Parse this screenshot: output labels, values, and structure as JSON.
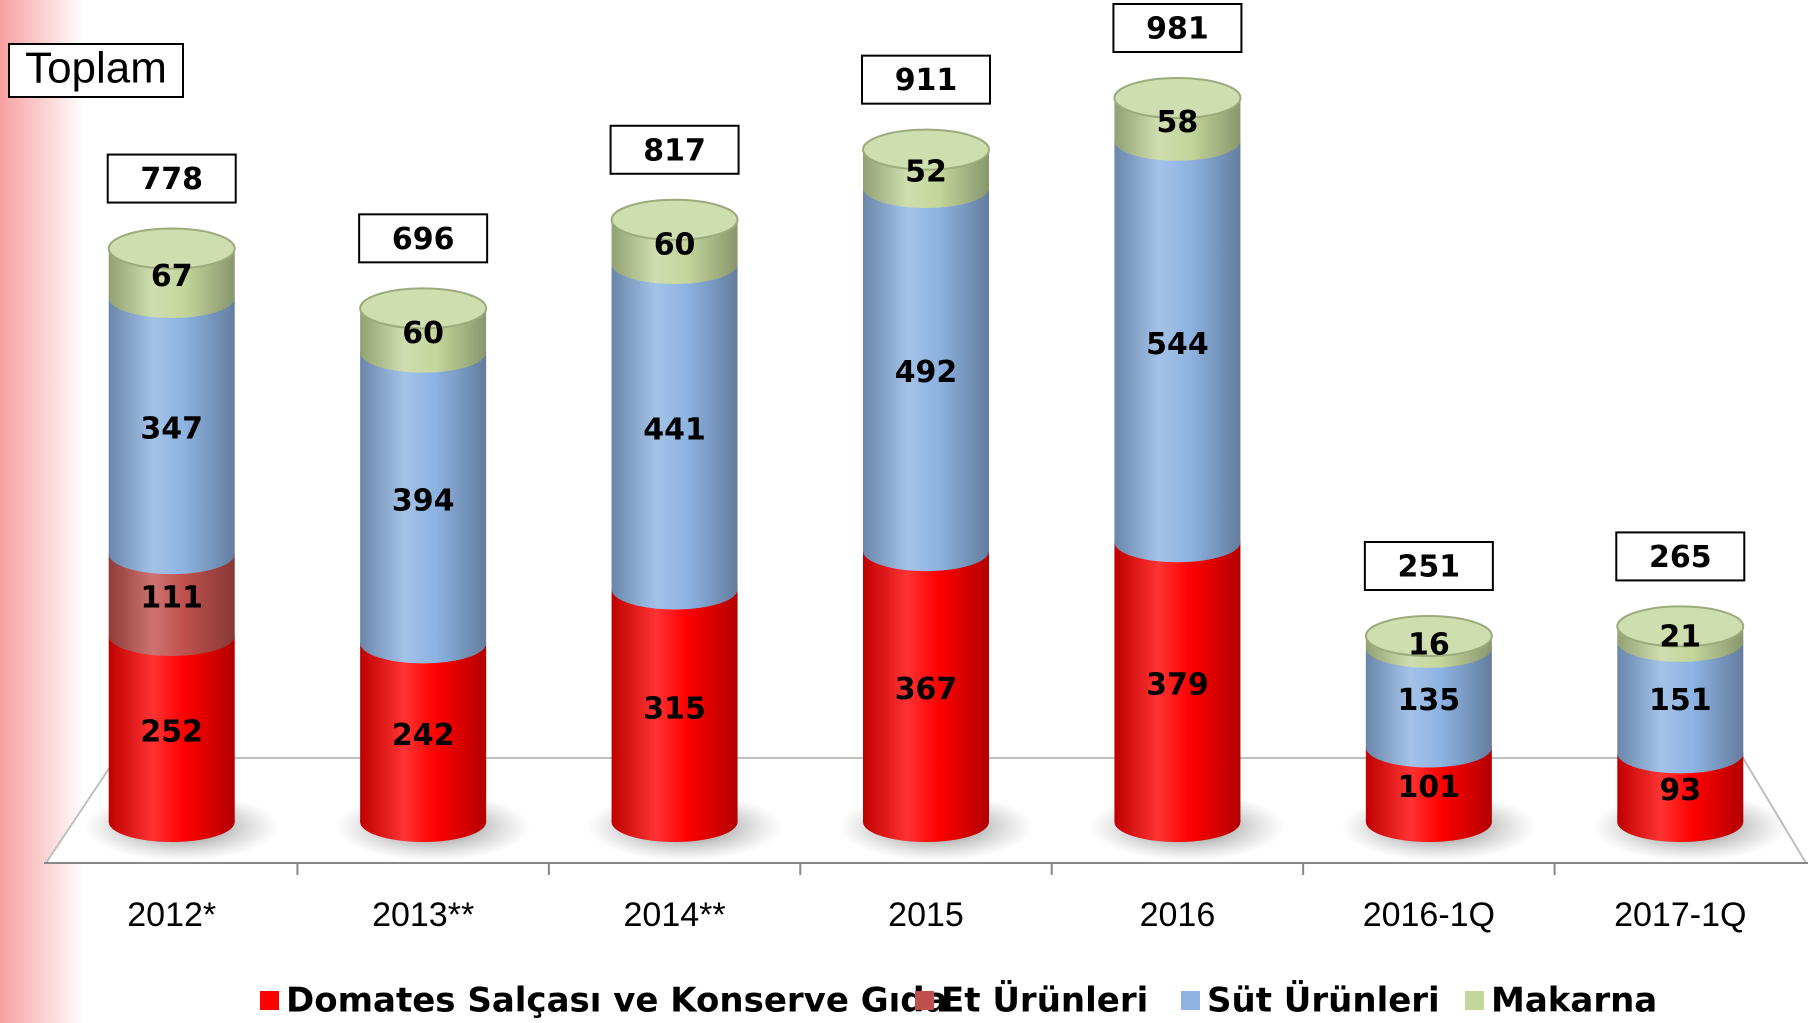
{
  "chart_data": {
    "type": "bar3d_stacked",
    "title": "Toplam",
    "categories": [
      "2012*",
      "2013**",
      "2014**",
      "2015",
      "2016",
      "2016-1Q",
      "2017-1Q"
    ],
    "series": [
      {
        "name": "Domates Salçası ve Konserve Gıda",
        "color": "#ff0000",
        "values": [
          252,
          242,
          315,
          367,
          379,
          101,
          93
        ]
      },
      {
        "name": "Et Ürünleri",
        "color": "#c0504d",
        "values": [
          111,
          null,
          null,
          null,
          null,
          null,
          null
        ]
      },
      {
        "name": "Süt Ürünleri",
        "color": "#8db3e2",
        "values": [
          347,
          394,
          441,
          492,
          544,
          135,
          151
        ]
      },
      {
        "name": "Makarna",
        "color": "#c3d69b",
        "values": [
          67,
          60,
          60,
          52,
          58,
          16,
          21
        ]
      }
    ],
    "totals": [
      778,
      696,
      817,
      911,
      981,
      251,
      265
    ],
    "legend": "bottom"
  }
}
